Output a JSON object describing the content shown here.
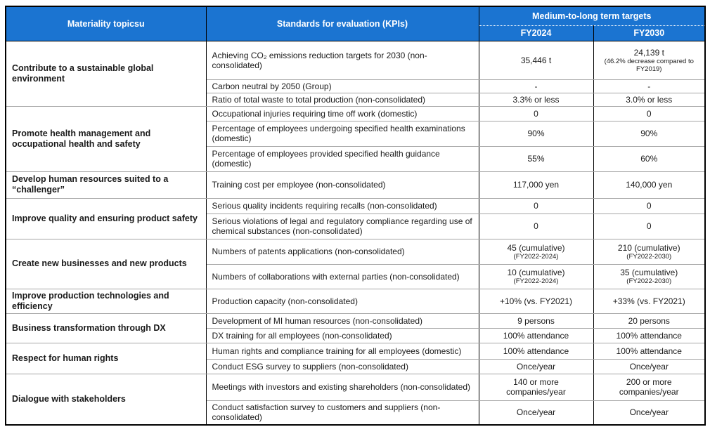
{
  "colors": {
    "header_bg": "#1B74D1",
    "header_text": "#FFFFFF",
    "border": "#000000",
    "row_line": "#A6A6A6"
  },
  "header": {
    "materiality": "Materiality topicsu",
    "kpis": "Standards for evaluation (KPIs)",
    "targets": "Medium-to-long term targets",
    "fy2024": "FY2024",
    "fy2030": "FY2030"
  },
  "groups": [
    {
      "topic": "Contribute to a sustainable global environment",
      "rows": [
        {
          "kpi": "Achieving CO₂ emissions reduction targets for 2030 (non-consolidated)",
          "fy2024": "35,446 t",
          "fy2030": "24,139 t",
          "fy2030_note": "(46.2% decrease compared to FY2019)"
        },
        {
          "kpi": "Carbon neutral by 2050 (Group)",
          "fy2024": "-",
          "fy2030": "-"
        },
        {
          "kpi": "Ratio of total waste to total production (non-consolidated)",
          "fy2024": "3.3% or less",
          "fy2030": "3.0% or less"
        }
      ]
    },
    {
      "topic": "Promote health management and occupational health and safety",
      "rows": [
        {
          "kpi": "Occupational injuries requiring time off work (domestic)",
          "fy2024": "0",
          "fy2030": "0"
        },
        {
          "kpi": "Percentage of employees undergoing specified health examinations (domestic)",
          "fy2024": "90%",
          "fy2030": "90%"
        },
        {
          "kpi": "Percentage of employees provided specified health guidance (domestic)",
          "fy2024": "55%",
          "fy2030": "60%"
        }
      ]
    },
    {
      "topic": "Develop human resources suited to a “challenger”",
      "rows": [
        {
          "kpi": "Training cost per employee (non-consolidated)",
          "fy2024": "117,000 yen",
          "fy2030": "140,000 yen"
        }
      ]
    },
    {
      "topic": "Improve quality and ensuring product safety",
      "rows": [
        {
          "kpi": "Serious quality incidents requiring recalls (non-consolidated)",
          "fy2024": "0",
          "fy2030": "0"
        },
        {
          "kpi": "Serious violations of legal and regulatory compliance regarding use of chemical substances (non-consolidated)",
          "fy2024": "0",
          "fy2030": "0"
        }
      ]
    },
    {
      "topic": "Create new businesses and new products",
      "rows": [
        {
          "kpi": "Numbers of patents applications (non-consolidated)",
          "fy2024": "45 (cumulative)",
          "fy2024_note": "(FY2022-2024)",
          "fy2030": "210 (cumulative)",
          "fy2030_note": "(FY2022-2030)"
        },
        {
          "kpi": "Numbers of collaborations with external parties (non-consolidated)",
          "fy2024": "10 (cumulative)",
          "fy2024_note": "(FY2022-2024)",
          "fy2030": "35 (cumulative)",
          "fy2030_note": "(FY2022-2030)"
        }
      ]
    },
    {
      "topic": "Improve production technologies and efficiency",
      "rows": [
        {
          "kpi": "Production capacity (non-consolidated)",
          "fy2024": "+10% (vs. FY2021)",
          "fy2030": "+33% (vs. FY2021)"
        }
      ]
    },
    {
      "topic": "Business transformation through DX",
      "rows": [
        {
          "kpi": "Development of MI human resources (non-consolidated)",
          "fy2024": "9 persons",
          "fy2030": "20 persons"
        },
        {
          "kpi": "DX training for all employees (non-consolidated)",
          "fy2024": "100% attendance",
          "fy2030": "100% attendance"
        }
      ]
    },
    {
      "topic": "Respect for human rights",
      "rows": [
        {
          "kpi": "Human rights and compliance training for all employees (domestic)",
          "fy2024": "100% attendance",
          "fy2030": "100% attendance"
        },
        {
          "kpi": "Conduct ESG survey to suppliers (non-consolidated)",
          "fy2024": "Once/year",
          "fy2030": "Once/year"
        }
      ]
    },
    {
      "topic": "Dialogue with stakeholders",
      "rows": [
        {
          "kpi": "Meetings with investors and existing shareholders (non-consolidated)",
          "fy2024": "140 or more companies/year",
          "fy2030": "200 or more companies/year"
        },
        {
          "kpi": "Conduct satisfaction survey to customers and suppliers (non-consolidated)",
          "fy2024": "Once/year",
          "fy2030": "Once/year"
        }
      ]
    }
  ]
}
